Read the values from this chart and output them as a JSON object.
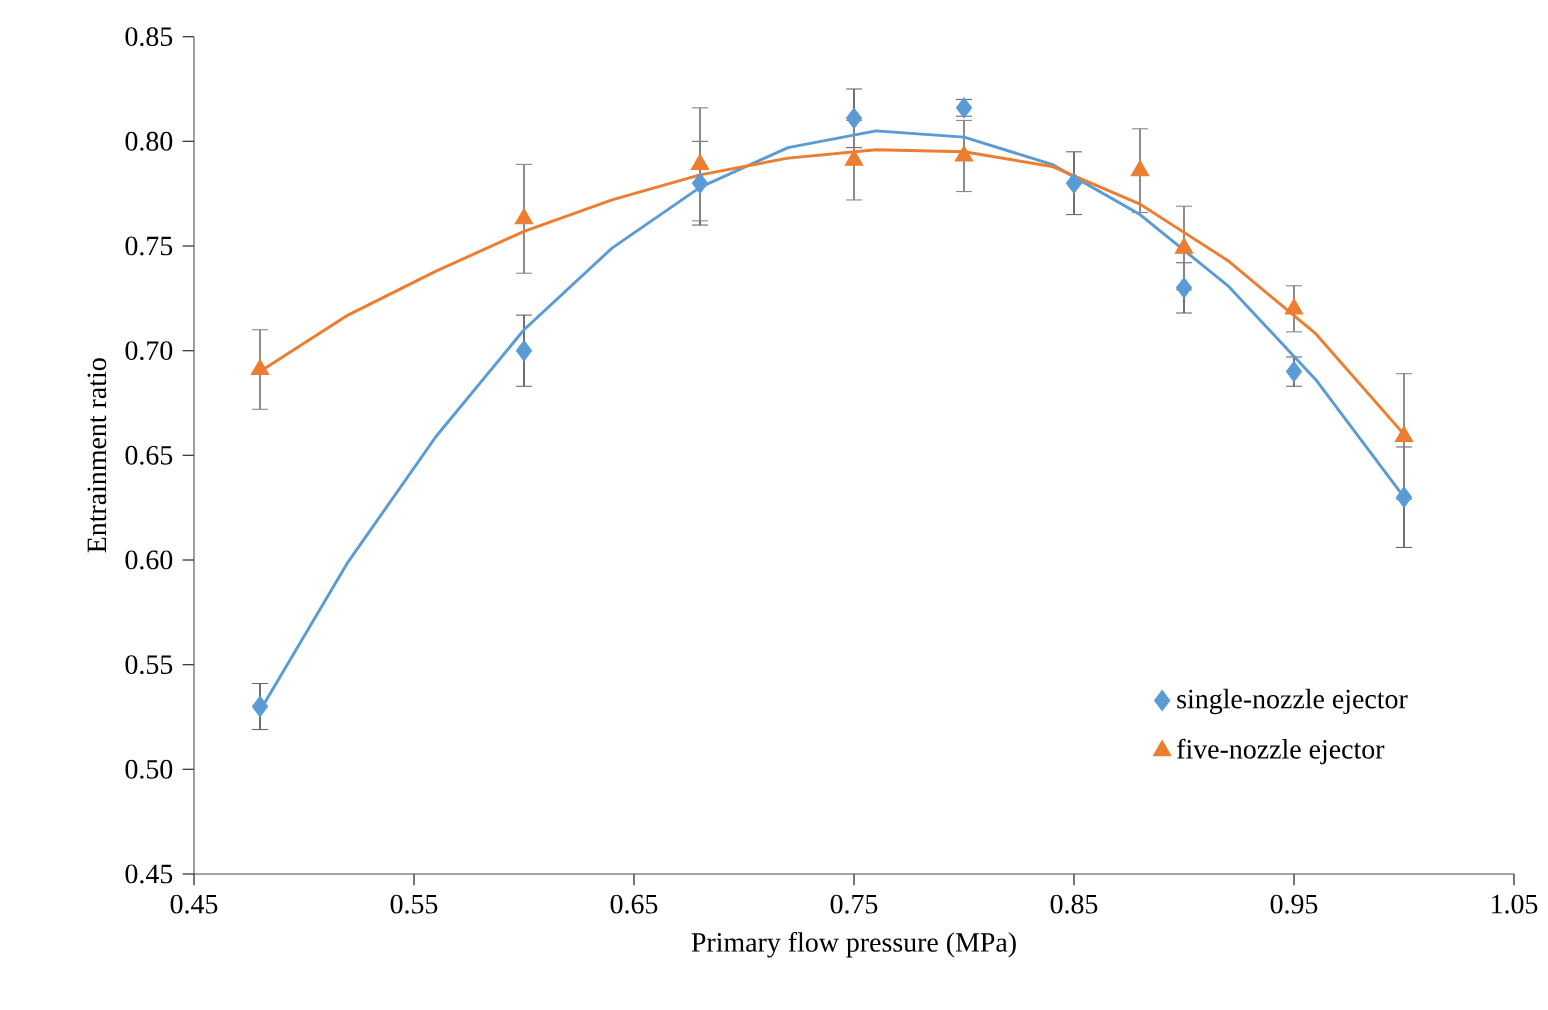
{
  "chart_data": {
    "type": "scatter",
    "xlabel": "Primary flow pressure (MPa)",
    "ylabel": "Entrainment ratio",
    "xlim": [
      0.45,
      1.05
    ],
    "ylim": [
      0.45,
      0.85
    ],
    "xticks": [
      0.45,
      0.55,
      0.65,
      0.75,
      0.85,
      0.95,
      1.05
    ],
    "yticks": [
      0.45,
      {
        "value": 0.5,
        "label": "0.50"
      },
      0.55,
      {
        "value": 0.6,
        "label": "0.60"
      },
      0.65,
      {
        "value": 0.7,
        "label": "0.70"
      },
      0.75,
      {
        "value": 0.8,
        "label": "0.80"
      },
      0.85
    ],
    "grid": false,
    "legend": "bottom right",
    "series": [
      {
        "name": "single-nozzle ejector",
        "marker": "diamond",
        "color": "#5b9bd5",
        "x": [
          0.48,
          0.6,
          0.68,
          0.75,
          0.8,
          0.85,
          0.9,
          0.95,
          1.0
        ],
        "values": [
          0.53,
          0.7,
          0.78,
          0.811,
          0.816,
          0.78,
          0.73,
          0.69,
          0.63
        ],
        "errors": [
          0.011,
          0.017,
          0.02,
          0.014,
          0.004,
          0.015,
          0.012,
          0.007,
          0.024
        ]
      },
      {
        "name": "five-nozzle ejector",
        "marker": "triangle",
        "color": "#ed7d31",
        "x": [
          0.48,
          0.6,
          0.68,
          0.75,
          0.8,
          0.88,
          0.9,
          0.95,
          1.0
        ],
        "values": [
          0.691,
          0.763,
          0.789,
          0.791,
          0.793,
          0.786,
          0.749,
          0.72,
          0.659
        ],
        "errors": [
          0.019,
          0.026,
          0.027,
          0.019,
          0.017,
          0.02,
          0.02,
          0.011,
          0.03
        ]
      },
      {
        "type": "line",
        "color": "#5b9bd5",
        "x": [
          0.48,
          0.52,
          0.56,
          0.6,
          0.64,
          0.68,
          0.72,
          0.76,
          0.8,
          0.84,
          0.88,
          0.92,
          0.96,
          1.0
        ],
        "values": [
          0.528,
          0.599,
          0.659,
          0.71,
          0.749,
          0.778,
          0.797,
          0.805,
          0.802,
          0.789,
          0.765,
          0.731,
          0.686,
          0.63
        ]
      },
      {
        "type": "line",
        "color": "#ed7d31",
        "x": [
          0.48,
          0.52,
          0.56,
          0.6,
          0.64,
          0.68,
          0.72,
          0.76,
          0.8,
          0.84,
          0.88,
          0.92,
          0.96,
          1.0
        ],
        "values": [
          0.69,
          0.717,
          0.738,
          0.757,
          0.772,
          0.784,
          0.792,
          0.796,
          0.795,
          0.788,
          0.77,
          0.743,
          0.708,
          0.66
        ]
      }
    ]
  }
}
